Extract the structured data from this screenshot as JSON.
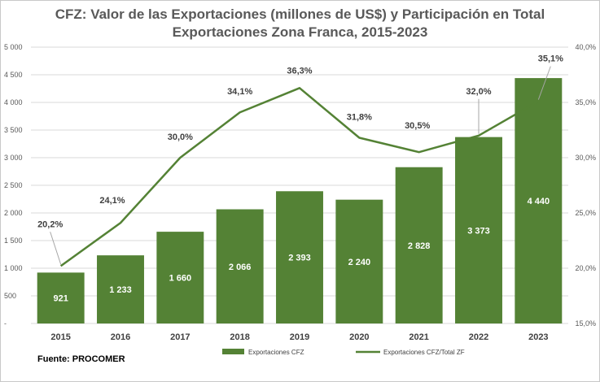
{
  "title_line1": "CFZ: Valor de las Exportaciones (millones de US$) y Participación en Total",
  "title_line2": "Exportaciones Zona Franca, 2015-2023",
  "source": "Fuente: PROCOMER",
  "colors": {
    "bar": "#548235",
    "line": "#548235",
    "grid": "#d9d9d9",
    "axis_text": "#595959"
  },
  "chart_data": {
    "type": "bar",
    "categories": [
      "2015",
      "2016",
      "2017",
      "2018",
      "2019",
      "2020",
      "2021",
      "2022",
      "2023"
    ],
    "series": [
      {
        "name": "Exportaciones CFZ",
        "type": "bar",
        "axis": "left",
        "values": [
          921,
          1233,
          1660,
          2066,
          2393,
          2240,
          2828,
          3373,
          4440
        ],
        "labels": [
          "921",
          "1 233",
          "1 660",
          "2 066",
          "2 393",
          "2 240",
          "2 828",
          "3 373",
          "4 440"
        ]
      },
      {
        "name": "Exportaciones CFZ/Total ZF",
        "type": "line",
        "axis": "right",
        "values": [
          20.2,
          24.1,
          30.0,
          34.1,
          36.3,
          31.8,
          30.5,
          32.0,
          35.1
        ],
        "labels": [
          "20,2%",
          "24,1%",
          "30,0%",
          "34,1%",
          "36,3%",
          "31,8%",
          "30,5%",
          "32,0%",
          "35,1%"
        ]
      }
    ],
    "y_left": {
      "ylim": [
        0,
        5000
      ],
      "ticks": [
        0,
        500,
        1000,
        1500,
        2000,
        2500,
        3000,
        3500,
        4000,
        4500,
        5000
      ],
      "tick_labels": [
        "-",
        "500",
        "1 000",
        "1 500",
        "2 000",
        "2 500",
        "3 000",
        "3 500",
        "4 000",
        "4 500",
        "5 000"
      ]
    },
    "y_right": {
      "ylim": [
        15,
        40
      ],
      "ticks": [
        15,
        20,
        25,
        30,
        35,
        40
      ],
      "tick_labels": [
        "15,0%",
        "20,0%",
        "25,0%",
        "30,0%",
        "35,0%",
        "40,0%"
      ]
    },
    "grid": true,
    "legend_position": "bottom"
  }
}
